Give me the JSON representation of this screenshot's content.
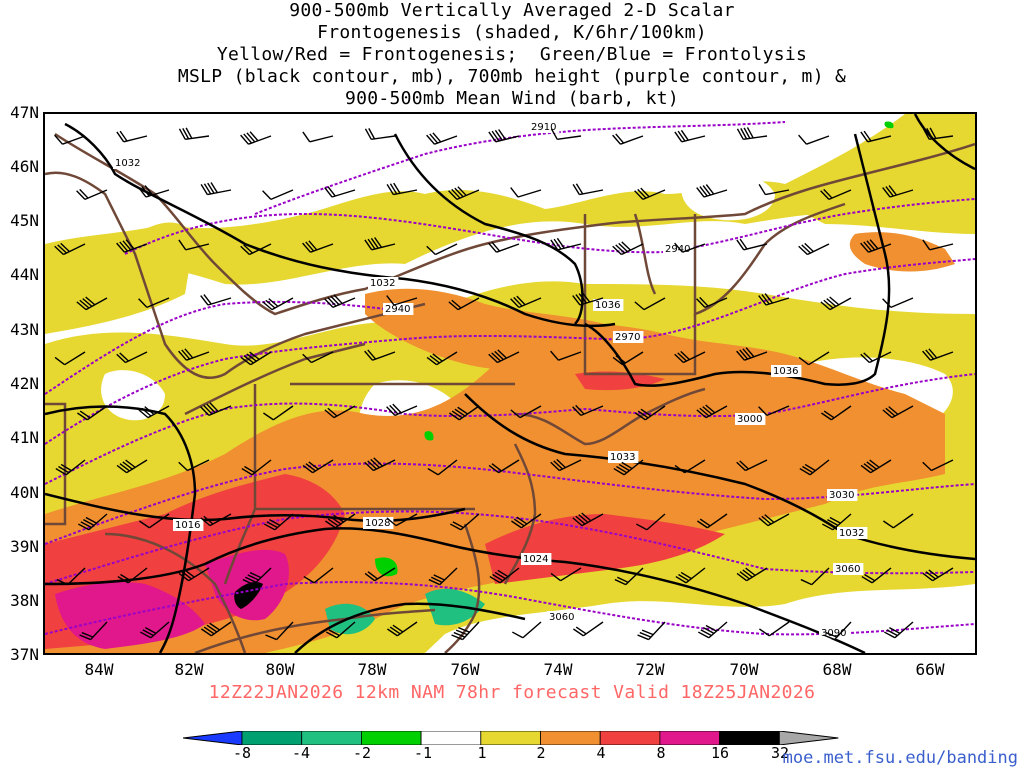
{
  "title_lines": [
    "900-500mb Vertically Averaged 2-D Scalar",
    "Frontogenesis (shaded, K/6hr/100km)",
    "Yellow/Red = Frontogenesis;  Green/Blue = Frontolysis",
    "MSLP (black contour, mb), 700mb height (purple contour, m) &",
    "900-500mb Mean Wind (barb, kt)"
  ],
  "lat_labels": [
    "47N",
    "46N",
    "45N",
    "44N",
    "43N",
    "42N",
    "41N",
    "40N",
    "39N",
    "38N",
    "37N"
  ],
  "lon_labels": [
    "84W",
    "82W",
    "80W",
    "78W",
    "76W",
    "74W",
    "72W",
    "70W",
    "68W",
    "66W"
  ],
  "forecast_text": "12Z22JAN2026 12km NAM 78hr forecast Valid 18Z25JAN2026",
  "colorbar": {
    "ticks": [
      "-8",
      "-4",
      "-2",
      "-1",
      "1",
      "2",
      "4",
      "8",
      "16",
      "32"
    ],
    "colors": [
      "#1a3aff",
      "#00a070",
      "#20c080",
      "#00d000",
      "#ffffff",
      "#e6d830",
      "#f09030",
      "#f04040",
      "#e0188c",
      "#000000",
      "#a8a8a8"
    ]
  },
  "mslp_labels": [
    "1032",
    "1032",
    "1036",
    "1036",
    "1033",
    "1032",
    "1028",
    "1024",
    "1016"
  ],
  "height_labels": [
    "2910",
    "2940",
    "2940",
    "2970",
    "3000",
    "3030",
    "3060",
    "3060",
    "3090"
  ],
  "colors": {
    "mslp": "#000000",
    "height": "#9a00c8",
    "borders": "#704838",
    "forecast_text": "#ff6666",
    "credit": "#3a5fcd"
  },
  "credit": "moe.met.fsu.edu/banding"
}
